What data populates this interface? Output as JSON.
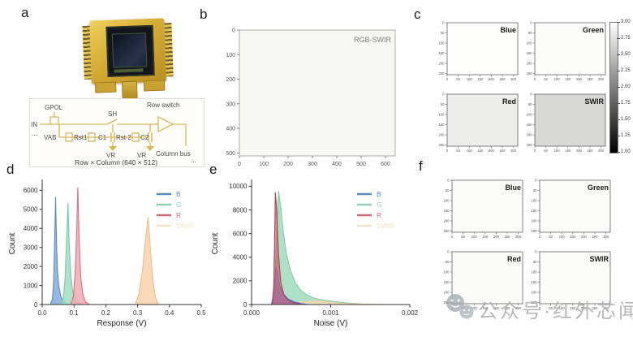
{
  "figure": {
    "panel_labels": {
      "a": "a",
      "b": "b",
      "c": "c",
      "d": "d",
      "e": "e",
      "f": "f"
    }
  },
  "watermark": {
    "text": "公众号·红外芯闻",
    "icon": "wechat-icon",
    "color": "#ababab"
  },
  "panel_a": {
    "circuit": {
      "gpol": "GPOL",
      "in_label": "IN",
      "dots_left": "...",
      "vab": "VAB",
      "rst1": "Rst1",
      "c1": "C1",
      "sh": "SH",
      "rst2": "Rst 2",
      "c2": "C2",
      "vr1": "VR",
      "vr2": "VR",
      "row_switch": "Row switch",
      "column_bus": "Column bus",
      "dots_right": "...",
      "caption": "Row × Column (640 × 512)",
      "wire_color": "#d4b85a"
    }
  },
  "chart_data": [
    {
      "id": "b",
      "type": "heatmap",
      "title": "RGB-SWIR",
      "x_ticks": [
        0,
        100,
        200,
        300,
        400,
        500,
        600
      ],
      "y_ticks": [
        0,
        100,
        200,
        300,
        400,
        500
      ],
      "x_range": [
        0,
        640
      ],
      "y_range": [
        0,
        512
      ],
      "bg": "#f7f7f4",
      "title_color": "#7a7a7a",
      "description": "uniform near-white RGB-SWIR response map, 640 x 512 pixels"
    },
    {
      "id": "c",
      "type": "heatmap",
      "subplots": [
        {
          "label": "Blue",
          "bg": "#fdfdfc",
          "mean_value": 2.95
        },
        {
          "label": "Green",
          "bg": "#fcfcfb",
          "mean_value": 2.93
        },
        {
          "label": "Red",
          "bg": "#ededeb",
          "mean_value": 2.85
        },
        {
          "label": "SWIR",
          "bg": "#d8d8d6",
          "mean_value": 2.6
        }
      ],
      "x_ticks": [
        0,
        50,
        100,
        150,
        200,
        250,
        300
      ],
      "y_ticks": [
        0,
        50,
        100,
        150,
        200,
        250
      ],
      "x_range": [
        0,
        320
      ],
      "y_range": [
        0,
        256
      ],
      "colorbar": {
        "min": 1.0,
        "max": 3.0,
        "ticks": [
          "3.00",
          "2.75",
          "2.50",
          "2.25",
          "2.00",
          "1.75",
          "1.50",
          "1.25",
          "1.00"
        ]
      }
    },
    {
      "id": "d",
      "type": "area",
      "xlabel": "Response (V)",
      "ylabel": "Count",
      "xlim": [
        0,
        0.5
      ],
      "ylim": [
        0,
        6400
      ],
      "x_ticks": [
        "0.0",
        "0.1",
        "0.2",
        "0.3",
        "0.4",
        "0.5"
      ],
      "y_ticks": [
        0,
        1000,
        2000,
        3000,
        4000,
        5000,
        6000
      ],
      "legend_position": "top-right",
      "legend": [
        {
          "label": "B",
          "color": "#5d8cbe"
        },
        {
          "label": "G",
          "color": "#8fd0b5"
        },
        {
          "label": "R",
          "color": "#cf6a7c"
        },
        {
          "label": "SWIR",
          "color": "#f3e2c3"
        }
      ],
      "series": [
        {
          "name": "B",
          "peak_x": 0.042,
          "peak_y": 5650,
          "stroke": "#5d8cbe",
          "fill": "#7fa6da",
          "opacity": 0.8,
          "points": [
            [
              0.025,
              0
            ],
            [
              0.032,
              250
            ],
            [
              0.036,
              1200
            ],
            [
              0.039,
              3200
            ],
            [
              0.042,
              5650
            ],
            [
              0.045,
              3400
            ],
            [
              0.048,
              1800
            ],
            [
              0.052,
              1000
            ],
            [
              0.058,
              450
            ],
            [
              0.066,
              150
            ],
            [
              0.078,
              30
            ],
            [
              0.09,
              0
            ]
          ]
        },
        {
          "name": "G",
          "peak_x": 0.081,
          "peak_y": 5350,
          "stroke": "#7cc8a6",
          "fill": "#a2dcc1",
          "opacity": 0.85,
          "points": [
            [
              0.058,
              0
            ],
            [
              0.066,
              300
            ],
            [
              0.072,
              1400
            ],
            [
              0.077,
              3600
            ],
            [
              0.081,
              5350
            ],
            [
              0.085,
              3200
            ],
            [
              0.09,
              1500
            ],
            [
              0.097,
              600
            ],
            [
              0.106,
              200
            ],
            [
              0.118,
              50
            ],
            [
              0.13,
              0
            ]
          ]
        },
        {
          "name": "R",
          "peak_x": 0.112,
          "peak_y": 6150,
          "stroke": "#d27383",
          "fill": "#f3aab3",
          "opacity": 0.85,
          "points": [
            [
              0.09,
              0
            ],
            [
              0.098,
              400
            ],
            [
              0.104,
              1800
            ],
            [
              0.109,
              4200
            ],
            [
              0.112,
              6150
            ],
            [
              0.116,
              3400
            ],
            [
              0.121,
              1500
            ],
            [
              0.128,
              500
            ],
            [
              0.137,
              120
            ],
            [
              0.148,
              0
            ]
          ]
        },
        {
          "name": "SWIR",
          "peak_x": 0.333,
          "peak_y": 4600,
          "stroke": "#f0bd8d",
          "fill": "#f8d2ab",
          "opacity": 0.85,
          "points": [
            [
              0.292,
              0
            ],
            [
              0.303,
              500
            ],
            [
              0.315,
              1800
            ],
            [
              0.326,
              3600
            ],
            [
              0.333,
              4600
            ],
            [
              0.34,
              2900
            ],
            [
              0.348,
              1300
            ],
            [
              0.355,
              450
            ],
            [
              0.362,
              100
            ],
            [
              0.368,
              0
            ]
          ]
        }
      ]
    },
    {
      "id": "e",
      "type": "area",
      "xlabel": "Noise (V)",
      "ylabel": "Count",
      "xlim": [
        0,
        0.002
      ],
      "ylim": [
        0,
        10300
      ],
      "x_ticks": [
        "0.000",
        "0.001",
        "0.002"
      ],
      "y_ticks": [
        0,
        2000,
        4000,
        6000,
        8000,
        10000
      ],
      "legend_position": "top-right",
      "legend": [
        {
          "label": "B",
          "color": "#5d8cbe"
        },
        {
          "label": "G",
          "color": "#8fd0b5"
        },
        {
          "label": "R",
          "color": "#cf6a7c"
        },
        {
          "label": "SWIR",
          "color": "#f3e2c3"
        }
      ],
      "series": [
        {
          "name": "G",
          "peak_x": 0.00034,
          "peak_y": 9600,
          "stroke": "#84cca9",
          "fill": "#a5ddc2",
          "opacity": 0.9,
          "points": [
            [
              0.00027,
              0
            ],
            [
              0.0003,
              2500
            ],
            [
              0.00032,
              6500
            ],
            [
              0.00034,
              9600
            ],
            [
              0.00037,
              8200
            ],
            [
              0.0004,
              6200
            ],
            [
              0.00044,
              4300
            ],
            [
              0.00049,
              2900
            ],
            [
              0.00055,
              1900
            ],
            [
              0.00062,
              1200
            ],
            [
              0.0007,
              800
            ],
            [
              0.0008,
              520
            ],
            [
              0.0009,
              380
            ],
            [
              0.001,
              290
            ],
            [
              0.0011,
              210
            ],
            [
              0.0012,
              140
            ],
            [
              0.0013,
              80
            ],
            [
              0.0014,
              40
            ],
            [
              0.0015,
              0
            ]
          ]
        },
        {
          "name": "SWIR",
          "peak_x": 0.0008,
          "peak_y": 300,
          "stroke": "#f2cea0",
          "fill": "#f7dcba",
          "opacity": 0.85,
          "points": [
            [
              0.00042,
              0
            ],
            [
              0.0005,
              80
            ],
            [
              0.0006,
              180
            ],
            [
              0.0007,
              260
            ],
            [
              0.0008,
              300
            ],
            [
              0.0009,
              260
            ],
            [
              0.001,
              190
            ],
            [
              0.0011,
              130
            ],
            [
              0.0012,
              80
            ],
            [
              0.0013,
              50
            ],
            [
              0.0015,
              20
            ],
            [
              0.0017,
              0
            ]
          ]
        },
        {
          "name": "B",
          "peak_x": 0.00031,
          "peak_y": 3200,
          "stroke": "#4f77c8",
          "fill": "#6189d8",
          "opacity": 0.9,
          "points": [
            [
              0.00025,
              0
            ],
            [
              0.00028,
              900
            ],
            [
              0.0003,
              2400
            ],
            [
              0.00031,
              3200
            ],
            [
              0.00033,
              2400
            ],
            [
              0.00036,
              1500
            ],
            [
              0.0004,
              900
            ],
            [
              0.00046,
              480
            ],
            [
              0.00054,
              220
            ],
            [
              0.00063,
              80
            ],
            [
              0.00072,
              0
            ]
          ]
        },
        {
          "name": "R",
          "peak_x": 0.0003,
          "peak_y": 9500,
          "stroke": "#ad4257",
          "fill": "#c96272",
          "opacity": 0.7,
          "points": [
            [
              0.00026,
              0
            ],
            [
              0.00028,
              1500
            ],
            [
              0.00029,
              5000
            ],
            [
              0.0003,
              9500
            ],
            [
              0.00032,
              7800
            ],
            [
              0.00034,
              4200
            ],
            [
              0.00037,
              1800
            ],
            [
              0.00041,
              800
            ],
            [
              0.00047,
              300
            ],
            [
              0.00055,
              100
            ],
            [
              0.00065,
              0
            ]
          ]
        }
      ]
    },
    {
      "id": "f",
      "type": "heatmap",
      "subplots": [
        {
          "label": "Blue",
          "bg": "#fcfcfb"
        },
        {
          "label": "Green",
          "bg": "#fcfcfb"
        },
        {
          "label": "Red",
          "bg": "#fbfbfa"
        },
        {
          "label": "SWIR",
          "bg": "#fcfcfb"
        }
      ],
      "x_ticks": [
        0,
        50,
        100,
        150,
        200,
        250,
        300
      ],
      "y_ticks": [
        0,
        50,
        100,
        150,
        200,
        250
      ],
      "x_range": [
        0,
        320
      ],
      "y_range": [
        0,
        256
      ]
    }
  ]
}
